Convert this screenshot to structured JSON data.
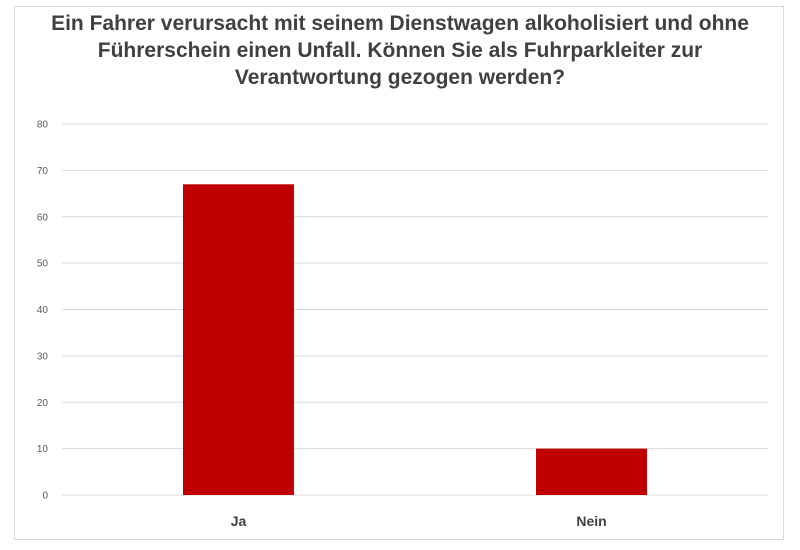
{
  "chart_data": {
    "type": "bar",
    "title": "Ein Fahrer verursacht mit seinem Dienstwagen alkoholisiert und ohne Führerschein einen Unfall. Können Sie als Fuhrparkleiter zur Verantwortung gezogen werden?",
    "categories": [
      "Ja",
      "Nein"
    ],
    "values": [
      67,
      10
    ],
    "ylim": [
      0,
      80
    ],
    "yticks": [
      0,
      10,
      20,
      30,
      40,
      50,
      60,
      70,
      80
    ],
    "xlabel": "",
    "ylabel": "",
    "grid": true,
    "legend": "none",
    "bar_color": "#c00000",
    "grid_color": "#d9d9d9"
  }
}
